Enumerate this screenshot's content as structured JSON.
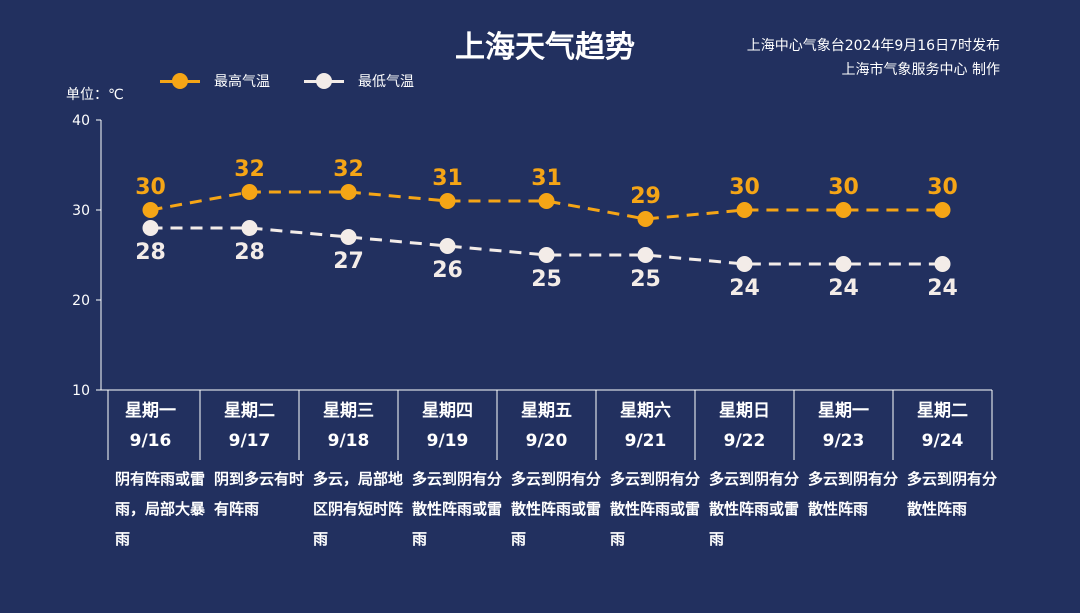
{
  "header": {
    "title": "上海天气趋势",
    "publish_line1": "上海中心气象台2024年9月16日7时发布",
    "publish_line2": "上海市气象服务中心 制作"
  },
  "unit_label": "单位：℃",
  "colors": {
    "high": "#f5a516",
    "low": "#f3ece8",
    "background": "#22305f",
    "axis": "#ffffff"
  },
  "chart_data": {
    "type": "line",
    "title": "上海天气趋势",
    "ylabel": "单位：℃",
    "ylim": [
      10,
      40
    ],
    "yticks": [
      10,
      20,
      30,
      40
    ],
    "legend_position": "top-left",
    "categories": [
      "星期一 9/16",
      "星期二 9/17",
      "星期三 9/18",
      "星期四 9/19",
      "星期五 9/20",
      "星期六 9/21",
      "星期日 9/22",
      "星期一 9/23",
      "星期二 9/24"
    ],
    "series": [
      {
        "name": "最高气温",
        "values": [
          30,
          32,
          32,
          31,
          31,
          29,
          30,
          30,
          30
        ]
      },
      {
        "name": "最低气温",
        "values": [
          28,
          28,
          27,
          26,
          25,
          25,
          24,
          24,
          24
        ]
      }
    ]
  },
  "days": [
    {
      "weekday": "星期一",
      "date": "9/16",
      "weather": "阴有阵雨或雷雨，局部大暴雨"
    },
    {
      "weekday": "星期二",
      "date": "9/17",
      "weather": "阴到多云有时有阵雨"
    },
    {
      "weekday": "星期三",
      "date": "9/18",
      "weather": "多云，局部地区阴有短时阵雨"
    },
    {
      "weekday": "星期四",
      "date": "9/19",
      "weather": "多云到阴有分散性阵雨或雷雨"
    },
    {
      "weekday": "星期五",
      "date": "9/20",
      "weather": "多云到阴有分散性阵雨或雷雨"
    },
    {
      "weekday": "星期六",
      "date": "9/21",
      "weather": "多云到阴有分散性阵雨或雷雨"
    },
    {
      "weekday": "星期日",
      "date": "9/22",
      "weather": "多云到阴有分散性阵雨或雷雨"
    },
    {
      "weekday": "星期一",
      "date": "9/23",
      "weather": "多云到阴有分散性阵雨"
    },
    {
      "weekday": "星期二",
      "date": "9/24",
      "weather": "多云到阴有分散性阵雨"
    }
  ]
}
